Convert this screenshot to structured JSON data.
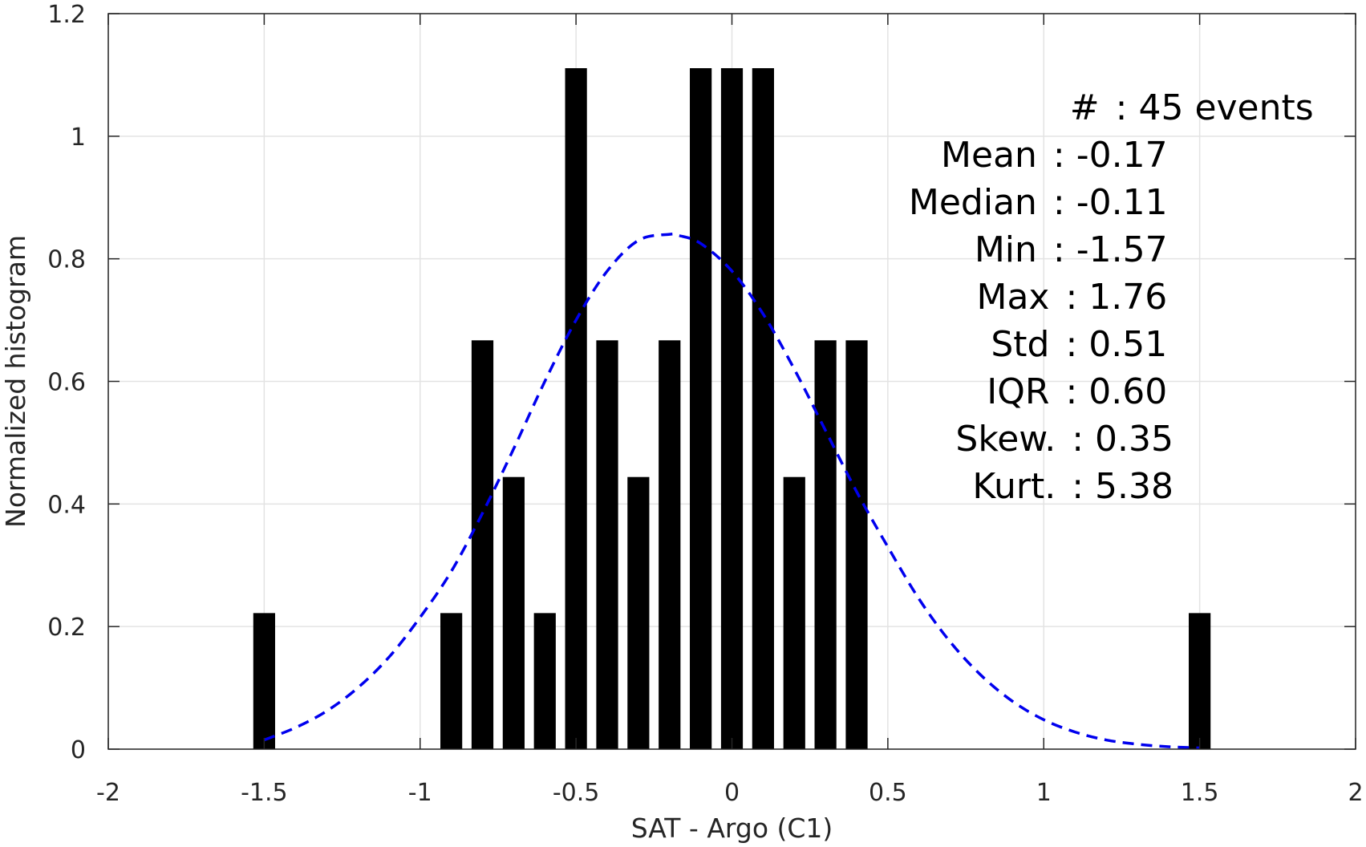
{
  "chart_data": {
    "type": "bar",
    "xlabel": "SAT - Argo (C1)",
    "ylabel": "Normalized histogram",
    "xlim": [
      -2,
      2
    ],
    "ylim": [
      0,
      1.2
    ],
    "xticks": [
      -2,
      -1.5,
      -1,
      -0.5,
      0,
      0.5,
      1,
      1.5,
      2
    ],
    "xtick_labels": [
      "-2",
      "-1.5",
      "-1",
      "-0.5",
      "0",
      "0.5",
      "1",
      "1.5",
      "2"
    ],
    "yticks": [
      0,
      0.2,
      0.4,
      0.6,
      0.8,
      1,
      1.2
    ],
    "ytick_labels": [
      "0",
      "0.2",
      "0.4",
      "0.6",
      "0.8",
      "1",
      "1.2"
    ],
    "grid": true,
    "bar_color": "#000000",
    "bins": {
      "x": [
        -1.5,
        -0.9,
        -0.8,
        -0.7,
        -0.6,
        -0.5,
        -0.4,
        -0.3,
        -0.2,
        -0.1,
        0.0,
        0.1,
        0.2,
        0.3,
        0.4,
        1.5
      ],
      "values": [
        0.222,
        0.222,
        0.667,
        0.444,
        0.222,
        1.111,
        0.667,
        0.444,
        0.667,
        1.111,
        1.111,
        1.111,
        0.444,
        0.667,
        0.667,
        0.222
      ],
      "bar_width": 0.07
    },
    "fit_curve": {
      "style": "dashed",
      "color": "#0000ee",
      "x": [
        -1.5,
        -1.4,
        -1.3,
        -1.2,
        -1.1,
        -1.0,
        -0.9,
        -0.8,
        -0.7,
        -0.6,
        -0.5,
        -0.4,
        -0.3,
        -0.2,
        -0.17,
        -0.1,
        0.0,
        0.1,
        0.2,
        0.3,
        0.4,
        0.5,
        0.6,
        0.7,
        0.8,
        0.9,
        1.0,
        1.1,
        1.2,
        1.3,
        1.4,
        1.5
      ],
      "y": [
        0.015,
        0.035,
        0.062,
        0.1,
        0.15,
        0.215,
        0.29,
        0.385,
        0.49,
        0.6,
        0.7,
        0.78,
        0.83,
        0.84,
        0.838,
        0.825,
        0.78,
        0.71,
        0.62,
        0.52,
        0.42,
        0.33,
        0.245,
        0.175,
        0.12,
        0.078,
        0.048,
        0.028,
        0.015,
        0.008,
        0.004,
        0.002
      ]
    },
    "annotations": [
      {
        "label": "#  : 45 events",
        "colon_x": 1.23
      },
      {
        "label": "Mean : -0.17",
        "colon_x": 1.03
      },
      {
        "label": "Median : -0.11",
        "colon_x": 1.03
      },
      {
        "label": "Min : -1.57",
        "colon_x": 1.03
      },
      {
        "label": "Max : 1.76",
        "colon_x": 1.07
      },
      {
        "label": "Std : 0.51",
        "colon_x": 1.07
      },
      {
        "label": "IQR : 0.60",
        "colon_x": 1.07
      },
      {
        "label": "Skew. : 0.35",
        "colon_x": 1.09
      },
      {
        "label": "Kurt. : 5.38",
        "colon_x": 1.09
      }
    ]
  }
}
